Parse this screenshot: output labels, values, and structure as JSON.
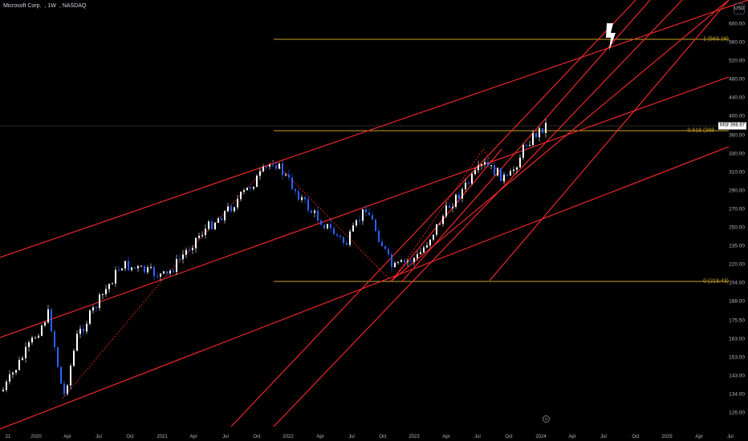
{
  "legend": {
    "symbol_name": "Microsoft Corp.",
    "interval": "1W",
    "exchange": "NASDAQ"
  },
  "scale_button": "USD",
  "price_axis": [
    "600.00",
    "560.00",
    "520.00",
    "480.00",
    "440.00",
    "400.00",
    "360.00",
    "330.00",
    "310.00",
    "290.00",
    "270.00",
    "250.00",
    "235.00",
    "220.00",
    "204.00",
    "188.00",
    "175.50",
    "163.00",
    "153.00",
    "143.00",
    "134.00",
    "126.00"
  ],
  "time_axis": [
    "21",
    "2020",
    "Apr",
    "Jul",
    "Oct",
    "2021",
    "Apr",
    "Jul",
    "Oct",
    "2022",
    "Apr",
    "Jul",
    "Oct",
    "2023",
    "Apr",
    "Jul",
    "Oct",
    "2024",
    "Apr",
    "Jul",
    "Oct",
    "2025",
    "Apr",
    "Jul"
  ],
  "fib_levels": [
    {
      "label": "1 (563.16)",
      "value": 563.16
    },
    {
      "label": "0.618 (388",
      "value": 388
    },
    {
      "label": "0 (213.43)",
      "value": 213.43
    }
  ],
  "symbol_tag": "MSFT",
  "last_price": "398.67",
  "goto_realtime": "⊕",
  "colors": {
    "background": "#000000",
    "channel": "#ff2a2a",
    "fib": "#c9a227",
    "candle_up": "#ffffff",
    "candle_down": "#2962ff"
  },
  "icons": {
    "annotation": "lightning-bolt-icon",
    "goto": "goto-realtime-icon"
  }
}
